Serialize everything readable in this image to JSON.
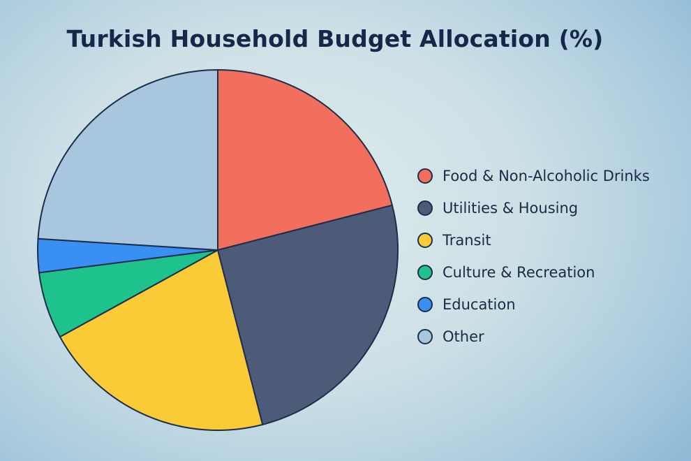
{
  "chart_data": {
    "type": "pie",
    "title": "Turkish Household Budget Allocation (%)",
    "slices": [
      {
        "label": "Food & Non-Alcoholic Drinks",
        "value": 21,
        "color": "#f36f5d"
      },
      {
        "label": "Utilities & Housing",
        "value": 25,
        "color": "#4b5b78"
      },
      {
        "label": "Transit",
        "value": 21,
        "color": "#fbcb37"
      },
      {
        "label": "Culture & Recreation",
        "value": 6,
        "color": "#1ec28c"
      },
      {
        "label": "Education",
        "value": 3,
        "color": "#3a8ff2"
      },
      {
        "label": "Other",
        "value": 24,
        "color": "#a8c6de"
      }
    ],
    "start_angle_deg": 0,
    "direction": "clockwise",
    "legend": "right"
  },
  "outline_color": "#1d2d4b"
}
